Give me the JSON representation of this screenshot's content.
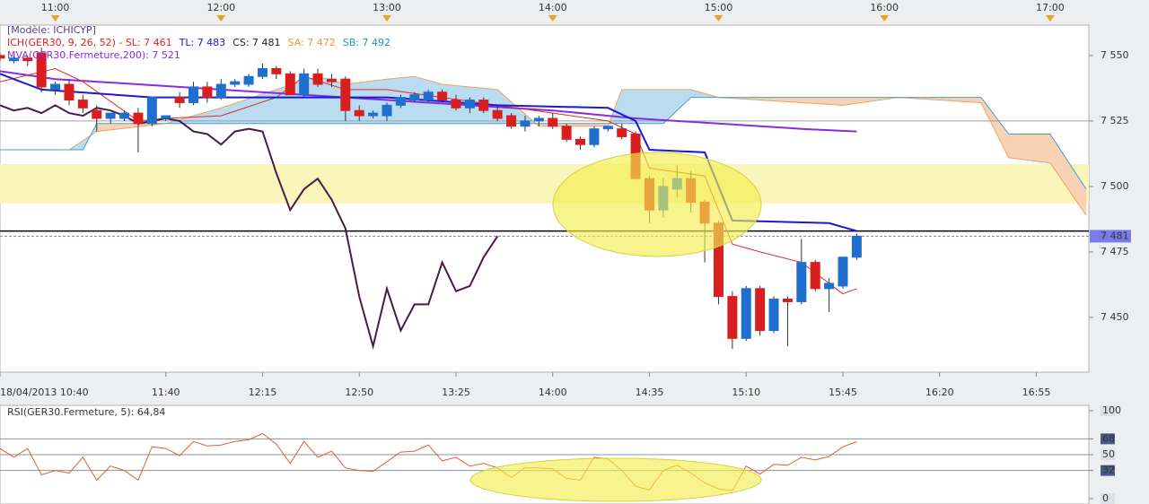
{
  "chart_data": [
    {
      "type": "candlestick",
      "legend_lines": [
        [
          {
            "text": "[Modèle: ICHICYP]",
            "color": "#5a3a8a"
          }
        ],
        [
          {
            "text": "ICH(GER30, 9, 26, 52) -  SL: 7 461",
            "color": "#e02020"
          },
          {
            "text": "TL: 7 483",
            "color": "#1a1ad0"
          },
          {
            "text": "CS: 7 481",
            "color": "#222222"
          },
          {
            "text": "SA: 7 472",
            "color": "#f09040"
          },
          {
            "text": "SB: 7 492",
            "color": "#2090d0"
          }
        ],
        [
          {
            "text": "MVA(GER30.Fermeture,200): 7 521",
            "color": "#8a2be2"
          }
        ]
      ],
      "xlim": [
        "10:40",
        "17:14"
      ],
      "xticks_top": [
        "11:00",
        "12:00",
        "13:00",
        "14:00",
        "15:00",
        "16:00",
        "17:00"
      ],
      "xticks": [
        {
          "value": "10:40",
          "label": "18/04/2013 10:40"
        },
        "11:40",
        "12:15",
        "12:50",
        "13:25",
        "14:00",
        "14:35",
        "15:10",
        "15:45",
        "16:20",
        "16:55"
      ],
      "ylim": [
        7429.1,
        7561.6
      ],
      "yticks": [
        {
          "value": 7450,
          "label": "7 450"
        },
        {
          "value": 7475,
          "label": "7 475"
        },
        {
          "value": 7500,
          "label": "7 500"
        },
        {
          "value": 7525,
          "label": "7 525"
        },
        {
          "value": 7550,
          "label": "7 550"
        }
      ],
      "x": [
        "10:40",
        "10:45",
        "10:50",
        "10:55",
        "11:00",
        "11:05",
        "11:10",
        "11:15",
        "11:20",
        "11:25",
        "11:30",
        "11:35",
        "11:40",
        "11:45",
        "11:50",
        "11:55",
        "12:00",
        "12:05",
        "12:10",
        "12:15",
        "12:20",
        "12:25",
        "12:30",
        "12:35",
        "12:40",
        "12:45",
        "12:50",
        "12:55",
        "13:00",
        "13:05",
        "13:10",
        "13:15",
        "13:20",
        "13:25",
        "13:30",
        "13:35",
        "13:40",
        "13:45",
        "13:50",
        "13:55",
        "14:00",
        "14:05",
        "14:10",
        "14:15",
        "14:20",
        "14:25",
        "14:30",
        "14:35",
        "14:40",
        "14:45",
        "14:50",
        "14:55",
        "15:00",
        "15:05",
        "15:10",
        "15:15",
        "15:20",
        "15:25",
        "15:30",
        "15:35",
        "15:40",
        "15:45",
        "15:50"
      ],
      "open": [
        7550,
        7548,
        7549,
        7551,
        7537,
        7539,
        7533,
        7529,
        7526,
        7526,
        7528,
        7524,
        7526,
        7534,
        7532,
        7538,
        7534,
        7539,
        7539,
        7542,
        7545,
        7543,
        7535,
        7543,
        7541,
        7541,
        7529,
        7527,
        7527,
        7531,
        7533,
        7533,
        7536,
        7533,
        7530,
        7533,
        7529,
        7527,
        7523,
        7525,
        7526,
        7523,
        7518,
        7516,
        7522,
        7522,
        7520,
        7503,
        7491,
        7499,
        7503,
        7494,
        7486,
        7458,
        7442,
        7461,
        7445,
        7457,
        7456,
        7471,
        7461,
        7462,
        7473
      ],
      "high": [
        7551,
        7550,
        7550,
        7553,
        7540,
        7541,
        7535,
        7531,
        7528,
        7529,
        7530,
        7534,
        7527,
        7536,
        7540,
        7540,
        7541,
        7541,
        7543,
        7547,
        7546,
        7544,
        7545,
        7545,
        7543,
        7542,
        7531,
        7529,
        7532,
        7535,
        7536,
        7537,
        7537,
        7535,
        7534,
        7534,
        7531,
        7528,
        7527,
        7527,
        7528,
        7524,
        7519,
        7523,
        7523,
        7524,
        7521,
        7504,
        7503,
        7508,
        7506,
        7495,
        7487,
        7460,
        7462,
        7462,
        7458,
        7458,
        7480,
        7472,
        7465,
        7473,
        7482
      ],
      "low": [
        7548,
        7547,
        7546,
        7536,
        7535,
        7531,
        7528,
        7521,
        7524,
        7525,
        7513,
        7523,
        7525,
        7530,
        7531,
        7532,
        7533,
        7538,
        7538,
        7541,
        7541,
        7535,
        7534,
        7538,
        7538,
        7525,
        7525,
        7526,
        7525,
        7530,
        7532,
        7532,
        7532,
        7529,
        7528,
        7528,
        7525,
        7522,
        7521,
        7523,
        7522,
        7517,
        7514,
        7515,
        7521,
        7518,
        7503,
        7486,
        7488,
        7496,
        7490,
        7471,
        7455,
        7438,
        7441,
        7443,
        7444,
        7439,
        7455,
        7460,
        7452,
        7461,
        7472
      ],
      "close": [
        7549,
        7549,
        7548,
        7538,
        7539,
        7533,
        7530,
        7526,
        7528,
        7528,
        7524,
        7534,
        7527,
        7532,
        7538,
        7534,
        7539,
        7540,
        7542,
        7545,
        7543,
        7535,
        7543,
        7539,
        7540,
        7529,
        7527,
        7528,
        7531,
        7534,
        7535,
        7536,
        7533,
        7530,
        7533,
        7529,
        7526,
        7523,
        7525,
        7526,
        7523,
        7518,
        7516,
        7522,
        7523,
        7519,
        7503,
        7491,
        7500,
        7503,
        7494,
        7486,
        7458,
        7442,
        7461,
        7445,
        7457,
        7456,
        7471,
        7461,
        7463,
        7473,
        7481
      ],
      "up_color": "#1f6fd0",
      "down_color": "#d81e1e",
      "cloud_up_color": "#b9dcf0",
      "cloud_down_color": "#f8d2b4",
      "sa": {
        "color": "#f0a060",
        "x": [
          "11:05",
          "11:15",
          "11:40",
          "12:00",
          "12:20",
          "12:35",
          "12:45",
          "13:00",
          "13:10",
          "13:20",
          "13:40",
          "13:55",
          "14:20",
          "14:25",
          "14:50",
          "15:00",
          "15:45",
          "16:05",
          "16:35",
          "16:45",
          "17:00",
          "17:13"
        ],
        "values": [
          7514,
          7521,
          7524,
          7530,
          7537,
          7542,
          7539,
          7541,
          7542,
          7539,
          7537,
          7523,
          7523,
          7537,
          7537,
          7534,
          7531,
          7534,
          7532,
          7511,
          7509,
          7489
        ]
      },
      "sb": {
        "color": "#40a0d8",
        "x": [
          "10:40",
          "11:10",
          "11:15",
          "14:40",
          "14:50",
          "16:35",
          "16:45",
          "17:00",
          "17:13"
        ],
        "values": [
          7514,
          7514,
          7524,
          7524,
          7534,
          7534,
          7520,
          7520,
          7499
        ]
      },
      "lines": [
        {
          "color": "#8a2be2",
          "x": [
            "10:40",
            "11:00",
            "11:30",
            "12:00",
            "12:30",
            "13:00",
            "13:30",
            "14:00",
            "14:30",
            "15:00",
            "15:30",
            "15:50"
          ],
          "values": [
            7544,
            7541,
            7539,
            7537,
            7535,
            7533,
            7531,
            7529,
            7526,
            7524,
            7522,
            7521
          ]
        },
        {
          "color": "#e02a2a",
          "x": [
            "10:40",
            "11:00",
            "11:10",
            "11:30",
            "11:40",
            "12:00",
            "12:20",
            "12:30",
            "12:45",
            "13:00",
            "13:20",
            "13:40",
            "14:00",
            "14:20",
            "14:30",
            "14:35",
            "14:55",
            "15:05",
            "15:15",
            "15:30",
            "15:45",
            "15:50"
          ],
          "values": [
            7540,
            7545,
            7540,
            7525,
            7526,
            7527,
            7534,
            7542,
            7537,
            7537,
            7534,
            7531,
            7528,
            7525,
            7520,
            7507,
            7504,
            7478,
            7475,
            7471,
            7459,
            7461
          ]
        },
        {
          "color": "#1a1ad0",
          "x": [
            "10:40",
            "10:55",
            "11:35",
            "13:00",
            "13:40",
            "14:20",
            "14:30",
            "14:35",
            "14:55",
            "15:05",
            "15:40",
            "15:50"
          ],
          "values": [
            7543,
            7537,
            7534,
            7534,
            7531,
            7530,
            7525,
            7514,
            7513,
            7487,
            7486,
            7483
          ]
        },
        {
          "color": "#4a1a4a",
          "x": [
            "10:40",
            "10:45",
            "10:50",
            "10:55",
            "11:00",
            "11:05",
            "11:10",
            "11:15",
            "11:20",
            "11:25",
            "11:30",
            "11:35",
            "11:40",
            "11:45",
            "11:50",
            "11:55",
            "12:00",
            "12:05",
            "12:10",
            "12:15",
            "12:20",
            "12:25",
            "12:30",
            "12:35",
            "12:40",
            "12:45",
            "12:50",
            "12:55",
            "13:00",
            "13:05",
            "13:10",
            "13:15",
            "13:20",
            "13:25",
            "13:30",
            "13:35",
            "13:40"
          ],
          "values": [
            7531,
            7529,
            7530,
            7528,
            7531,
            7528,
            7527,
            7530,
            7529,
            7527,
            7524,
            7525,
            7526,
            7525,
            7521,
            7520,
            7516,
            7521,
            7522,
            7521,
            7505,
            7491,
            7499,
            7503,
            7495,
            7484,
            7458,
            7439,
            7461,
            7445,
            7455,
            7455,
            7471,
            7460,
            7462,
            7473,
            7481
          ]
        }
      ],
      "band": {
        "from": 7493.5,
        "to": 7508.5,
        "color": "#faf5b8"
      },
      "hlines": [
        {
          "value": 7525,
          "color": "#a0a0a0"
        },
        {
          "value": 7483,
          "color": "#000000"
        }
      ],
      "last": {
        "value": 7481,
        "label": "7 481",
        "color": "#7a7ae8"
      }
    },
    {
      "type": "line",
      "title": "RSI(GER30.Fermeture, 5): 64,84",
      "color": "#e0602a",
      "ylim": [
        0,
        100
      ],
      "yticks": [
        100,
        68,
        50,
        32,
        0
      ],
      "levels": [
        68,
        50,
        32
      ],
      "boxed_ticks": [
        68,
        32
      ],
      "x": [
        "10:40",
        "10:45",
        "10:50",
        "10:55",
        "11:00",
        "11:05",
        "11:10",
        "11:15",
        "11:20",
        "11:25",
        "11:30",
        "11:35",
        "11:40",
        "11:45",
        "11:50",
        "11:55",
        "12:00",
        "12:05",
        "12:10",
        "12:15",
        "12:20",
        "12:25",
        "12:30",
        "12:35",
        "12:40",
        "12:45",
        "12:50",
        "12:55",
        "13:00",
        "13:05",
        "13:10",
        "13:15",
        "13:20",
        "13:25",
        "13:30",
        "13:35",
        "13:40",
        "13:45",
        "13:50",
        "13:55",
        "14:00",
        "14:05",
        "14:10",
        "14:15",
        "14:20",
        "14:25",
        "14:30",
        "14:35",
        "14:40",
        "14:45",
        "14:50",
        "14:55",
        "15:00",
        "15:05",
        "15:10",
        "15:15",
        "15:20",
        "15:25",
        "15:30",
        "15:35",
        "15:40",
        "15:45",
        "15:50"
      ],
      "values": [
        57,
        47,
        57,
        27,
        32,
        29,
        47,
        21,
        37,
        32,
        21,
        59,
        57,
        49,
        65,
        60,
        61,
        65,
        67,
        74,
        62,
        40,
        65,
        47,
        54,
        35,
        32,
        31,
        42,
        53,
        54,
        61,
        43,
        47,
        37,
        40,
        35,
        24,
        35,
        35,
        34,
        23,
        21,
        47,
        45,
        32,
        14,
        10,
        32,
        38,
        29,
        18,
        11,
        9,
        37,
        28,
        39,
        38,
        47,
        44,
        48,
        59,
        64.84
      ]
    }
  ]
}
